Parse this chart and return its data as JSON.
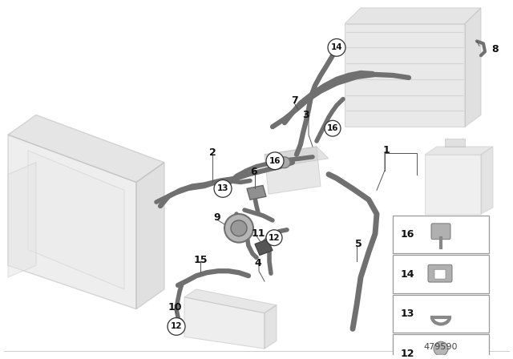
{
  "bg_color": "#ffffff",
  "diagram_number": "479590",
  "main_gray": "#888888",
  "hose_color": "#707070",
  "component_face": "#d8d8d8",
  "component_edge": "#aaaaaa",
  "ghost_color": "#cccccc",
  "ghost_alpha": 0.55,
  "leader_color": "#555555",
  "label_color": "#111111"
}
